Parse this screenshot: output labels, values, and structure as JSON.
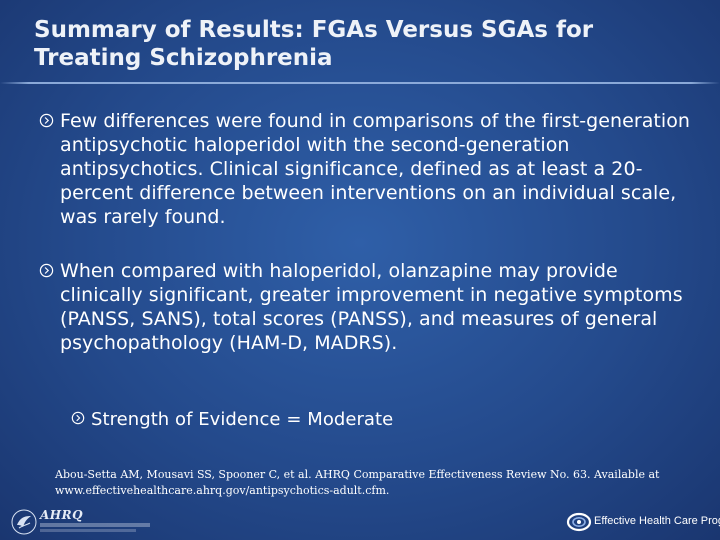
{
  "slide": {
    "title": "Summary of Results: FGAs Versus SGAs for Treating Schizophrenia",
    "bullets": [
      {
        "level": 1,
        "text": "Few differences were found in comparisons of the first-generation antipsychotic haloperidol with the second-generation antipsychotics. Clinical significance, defined as at least a 20-percent difference between interventions on an individual scale, was rarely found."
      },
      {
        "level": 1,
        "text": "When compared with haloperidol, olanzapine may provide clinically significant, greater improvement in negative symptoms (PANSS, SANS), total scores (PANSS), and measures of general psychopathology (HAM-D, MADRS)."
      },
      {
        "level": 2,
        "text": "Strength of Evidence = Moderate"
      }
    ],
    "bullet_marker_icon": "circle-arrow-icon",
    "citation": "Abou-Setta AM, Mousavi SS, Spooner C, et al. AHRQ Comparative Effectiveness Review No. 63. Available at www.effectivehealthcare.ahrq.gov/antipsychotics-adult.cfm."
  },
  "footer": {
    "left_logo_icon": "hhs-eagle-icon",
    "ahrq_logo_text": "AHRQ",
    "right_logo_icon": "effective-health-care-mark-icon",
    "right_logo_text": "Effective Health Care Program"
  },
  "colors": {
    "background": "#244a8c",
    "text": "#ffffff",
    "rule": "#96b4e1"
  }
}
